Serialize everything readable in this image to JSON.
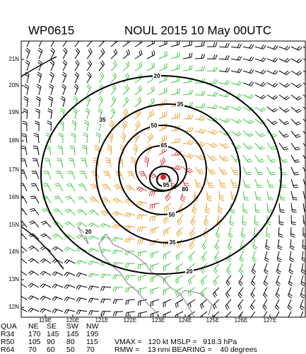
{
  "header": {
    "id": "WP0615",
    "title": "NOUL 2015 10 May 00UTC"
  },
  "lat_labels": [
    "21N",
    "20N",
    "19N",
    "18N",
    "17N",
    "16N",
    "15N",
    "14N",
    "13N",
    "12N"
  ],
  "lon_labels": [
    "119E",
    "120E",
    "121E",
    "122E",
    "123E",
    "124E",
    "125E",
    "126E",
    "127E"
  ],
  "contour_labels": [
    20,
    20,
    20,
    35,
    35,
    35,
    50,
    50,
    65,
    95,
    80
  ],
  "table": {
    "rows": [
      [
        "QUA",
        "NE",
        "SE",
        "SW",
        "NW"
      ],
      [
        "R34",
        "170",
        "145",
        "145",
        "195"
      ],
      [
        "R50",
        "105",
        "90",
        "80",
        "115"
      ],
      [
        "R64",
        "70",
        "60",
        "50",
        "70"
      ]
    ]
  },
  "footer": [
    "VMAX =   120 kt MSLP =   918.3 hPa",
    "RMW =    13 nmi BEARING =    40 degrees"
  ]
}
